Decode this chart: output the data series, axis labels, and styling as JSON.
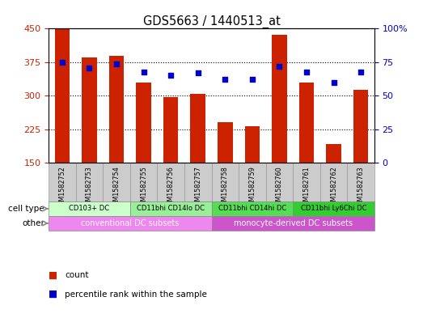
{
  "title": "GDS5663 / 1440513_at",
  "samples": [
    "GSM1582752",
    "GSM1582753",
    "GSM1582754",
    "GSM1582755",
    "GSM1582756",
    "GSM1582757",
    "GSM1582758",
    "GSM1582759",
    "GSM1582760",
    "GSM1582761",
    "GSM1582762",
    "GSM1582763"
  ],
  "counts": [
    450,
    385,
    390,
    330,
    297,
    305,
    242,
    232,
    437,
    330,
    192,
    313
  ],
  "percentiles": [
    75,
    71,
    74,
    68,
    65,
    67,
    62,
    62,
    72,
    68,
    60,
    68
  ],
  "ylim_left": [
    150,
    450
  ],
  "ylim_right": [
    0,
    100
  ],
  "yticks_left": [
    150,
    225,
    300,
    375,
    450
  ],
  "yticks_right": [
    0,
    25,
    50,
    75,
    100
  ],
  "bar_color": "#cc2200",
  "dot_color": "#0000cc",
  "cell_type_groups": [
    {
      "label": "CD103+ DC",
      "start": 0,
      "end": 2,
      "color": "#ccffcc"
    },
    {
      "label": "CD11bhi CD14lo DC",
      "start": 3,
      "end": 5,
      "color": "#99ee99"
    },
    {
      "label": "CD11bhi CD14hi DC",
      "start": 6,
      "end": 8,
      "color": "#55dd55"
    },
    {
      "label": "CD11bhi Ly6Chi DC",
      "start": 9,
      "end": 11,
      "color": "#33cc33"
    }
  ],
  "other_groups": [
    {
      "label": "conventional DC subsets",
      "start": 0,
      "end": 5,
      "color": "#ee88ee"
    },
    {
      "label": "monocyte-derived DC subsets",
      "start": 6,
      "end": 11,
      "color": "#cc55cc"
    }
  ],
  "sample_box_color": "#cccccc",
  "legend_count_label": "count",
  "legend_pct_label": "percentile rank within the sample",
  "ylabel_left_color": "#cc2200",
  "ylabel_right_color": "#0000cc",
  "grid_yticks": [
    225,
    300,
    375
  ]
}
